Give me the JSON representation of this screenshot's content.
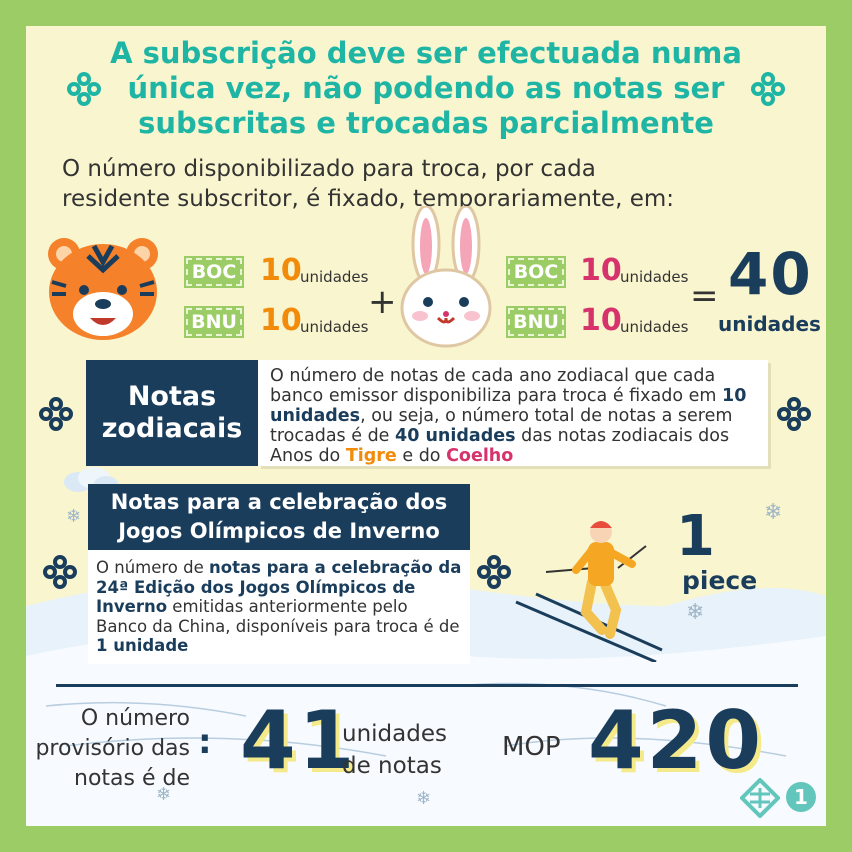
{
  "title": {
    "line1": "A subscrição deve ser efectuada numa",
    "line2": "única vez, não podendo as notas ser",
    "line3": "subscritas e trocadas parcialmente"
  },
  "intro": {
    "line1": "O número disponibilizado para troca, por cada",
    "line2": "residente subscritor, é fixado, temporariamente, em:"
  },
  "tiger": {
    "icon": "tiger-face-icon",
    "rows": [
      {
        "bank": "BOC",
        "value": "10",
        "unit": "unidades"
      },
      {
        "bank": "BNU",
        "value": "10",
        "unit": "unidades"
      }
    ]
  },
  "rabbit": {
    "icon": "rabbit-face-icon",
    "rows": [
      {
        "bank": "BOC",
        "value": "10",
        "unit": "unidades"
      },
      {
        "bank": "BNU",
        "value": "10",
        "unit": "unidades"
      }
    ]
  },
  "plus": "+",
  "equals": "=",
  "total": {
    "value": "40",
    "unit": "unidades"
  },
  "zodiac": {
    "title1": "Notas",
    "title2": "zodiacais",
    "text_a": "O número de notas de cada ano zodiacal que cada banco emissor disponibiliza para troca é fixado em ",
    "bold_a": "10 unidades",
    "text_b": ", ou seja, o número total de notas a serem trocadas é de ",
    "bold_b": "40 unidades",
    "text_c": " das notas zodiacais dos Anos do ",
    "tiger": "Tigre",
    "text_d": " e do ",
    "rabbit": "Coelho"
  },
  "olympic": {
    "title1": "Notas para a celebração dos",
    "title2": "Jogos Olímpicos de Inverno",
    "text_a": "O número de ",
    "bold_a": "notas para a celebração da 24ª Edição dos Jogos Olímpicos de Inverno",
    "text_b": " emitidas anteriormente pelo Banco da China, disponíveis para troca é de ",
    "bold_b": "1 unidade",
    "count": "1",
    "count_unit": "piece"
  },
  "summary": {
    "label1": "O número",
    "label2": "provisório das",
    "label3": "notas é de",
    "colon": ":",
    "count": "41",
    "unit1": "unidades",
    "unit2": "de notas",
    "currency": "MOP",
    "amount": "420"
  },
  "page_number": "1",
  "colors": {
    "frame": "#9ccc65",
    "background": "#f9f5cf",
    "title": "#1fb5a5",
    "navy": "#1b3d5c",
    "orange": "#f28b0a",
    "pink": "#d6336c"
  }
}
